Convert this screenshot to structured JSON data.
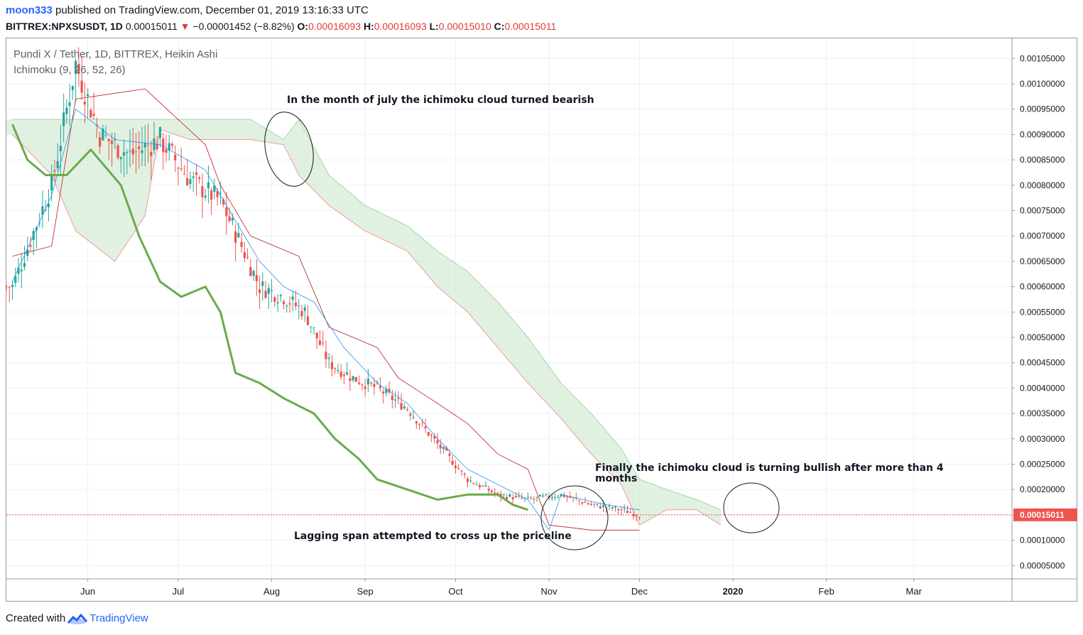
{
  "header": {
    "user": "moon333",
    "published": "published on TradingView.com, December 01, 2019 13:16:33 UTC",
    "symbol": "BITTREX:NPXSUSDT, 1D",
    "last": "0.00015011",
    "change": "−0.00001452 (−8.82%)",
    "o_label": "O:",
    "o": "0.00016093",
    "h_label": "H:",
    "h": "0.00016093",
    "l_label": "L:",
    "l": "0.00015010",
    "c_label": "C:",
    "c": "0.00015011"
  },
  "legend": {
    "line1": "Pundi X / Tether, 1D, BITTREX, Heikin Ashi",
    "line2": "Ichimoku (9, 26, 52, 26)"
  },
  "annotations": {
    "cloud_bearish": "In the month of july the ichimoku cloud turned bearish",
    "cloud_bullish_1": "Finally the ichimoku cloud is turning bullish after more than 4",
    "cloud_bullish_2": "months",
    "lagging": "Lagging span attempted to cross up the priceline"
  },
  "footer": {
    "created": "Created with",
    "brand": "TradingView"
  },
  "colors": {
    "up": "#26a69a",
    "down": "#ef5350",
    "tenkan": "#2196f3",
    "kijun": "#b71c1c",
    "lagging": "#6aaa4c",
    "cloud_bear": "#ffcdd2",
    "cloud_bull": "#c8e6c9"
  },
  "chart_data": {
    "type": "candlestick",
    "scale": "linear",
    "ylim": [
      3e-05,
      0.00109
    ],
    "y_ticks": [
      "0.00005000",
      "0.00010000",
      "0.00015000",
      "0.00020000",
      "0.00025000",
      "0.00030000",
      "0.00035000",
      "0.00040000",
      "0.00045000",
      "0.00050000",
      "0.00055000",
      "0.00060000",
      "0.00065000",
      "0.00070000",
      "0.00075000",
      "0.00080000",
      "0.00085000",
      "0.00090000",
      "0.00095000",
      "0.00100000",
      "0.00105000"
    ],
    "x_ticks": [
      "Jun",
      "Jul",
      "Aug",
      "Sep",
      "Oct",
      "Nov",
      "Dec",
      "2020",
      "Feb",
      "Mar"
    ],
    "last_price": "0.00015011",
    "series": {
      "price_close": {
        "points": [
          [
            "May-07",
            0.0006
          ],
          [
            "May-20",
            0.0008
          ],
          [
            "May-28",
            0.00104
          ],
          [
            "Jun-05",
            0.0009
          ],
          [
            "Jun-15",
            0.00086
          ],
          [
            "Jun-25",
            0.00089
          ],
          [
            "Jul-05",
            0.00081
          ],
          [
            "Jul-15",
            0.00077
          ],
          [
            "Jul-22",
            0.00068
          ],
          [
            "Jul-28",
            0.0006
          ],
          [
            "Aug-05",
            0.00058
          ],
          [
            "Aug-12",
            0.00055
          ],
          [
            "Aug-20",
            0.00045
          ],
          [
            "Aug-28",
            0.00042
          ],
          [
            "Sep-05",
            0.0004
          ],
          [
            "Sep-15",
            0.00036
          ],
          [
            "Sep-25",
            0.00029
          ],
          [
            "Oct-05",
            0.00022
          ],
          [
            "Oct-15",
            0.00019
          ],
          [
            "Oct-25",
            0.00018
          ],
          [
            "Nov-05",
            0.00019
          ],
          [
            "Nov-15",
            0.00017
          ],
          [
            "Nov-25",
            0.00016
          ],
          [
            "Dec-01",
            0.00015
          ]
        ]
      },
      "tenkan": {
        "points": [
          [
            "May-07",
            0.00061
          ],
          [
            "May-20",
            0.00078
          ],
          [
            "May-28",
            0.00095
          ],
          [
            "Jun-10",
            0.00089
          ],
          [
            "Jun-25",
            0.00088
          ],
          [
            "Jul-10",
            0.00083
          ],
          [
            "Jul-18",
            0.00075
          ],
          [
            "Jul-28",
            0.00065
          ],
          [
            "Aug-05",
            0.0006
          ],
          [
            "Aug-15",
            0.00057
          ],
          [
            "Aug-25",
            0.00048
          ],
          [
            "Sep-05",
            0.00041
          ],
          [
            "Sep-15",
            0.00037
          ],
          [
            "Sep-25",
            0.0003
          ],
          [
            "Oct-05",
            0.00024
          ],
          [
            "Oct-15",
            0.00021
          ],
          [
            "Oct-25",
            0.00018
          ],
          [
            "Nov-01",
            0.00012
          ],
          [
            "Nov-05",
            0.00019
          ],
          [
            "Nov-20",
            0.00017
          ],
          [
            "Dec-01",
            0.00016
          ]
        ]
      },
      "kijun": {
        "points": [
          [
            "May-07",
            0.00066
          ],
          [
            "May-20",
            0.00068
          ],
          [
            "May-28",
            0.00097
          ],
          [
            "Jun-20",
            0.00099
          ],
          [
            "Jul-10",
            0.00088
          ],
          [
            "Jul-15",
            0.0008
          ],
          [
            "Jul-25",
            0.0007
          ],
          [
            "Aug-10",
            0.00066
          ],
          [
            "Aug-20",
            0.00052
          ],
          [
            "Sep-05",
            0.00048
          ],
          [
            "Sep-12",
            0.00042
          ],
          [
            "Sep-25",
            0.00037
          ],
          [
            "Oct-05",
            0.00033
          ],
          [
            "Oct-15",
            0.00027
          ],
          [
            "Oct-25",
            0.00024
          ],
          [
            "Nov-01",
            0.00013
          ],
          [
            "Nov-15",
            0.00012
          ],
          [
            "Dec-01",
            0.00012
          ]
        ]
      },
      "lagging_span": {
        "points": [
          [
            "May-07",
            0.00092
          ],
          [
            "May-12",
            0.00085
          ],
          [
            "May-18",
            0.00082
          ],
          [
            "May-25",
            0.00082
          ],
          [
            "Jun-02",
            0.00087
          ],
          [
            "Jun-12",
            0.0008
          ],
          [
            "Jun-18",
            0.0007
          ],
          [
            "Jun-25",
            0.00061
          ],
          [
            "Jul-02",
            0.00058
          ],
          [
            "Jul-10",
            0.0006
          ],
          [
            "Jul-15",
            0.00055
          ],
          [
            "Jul-20",
            0.00043
          ],
          [
            "Jul-28",
            0.00041
          ],
          [
            "Aug-05",
            0.00038
          ],
          [
            "Aug-15",
            0.00035
          ],
          [
            "Aug-22",
            0.0003
          ],
          [
            "Aug-30",
            0.00026
          ],
          [
            "Sep-05",
            0.00022
          ],
          [
            "Sep-15",
            0.0002
          ],
          [
            "Sep-25",
            0.00018
          ],
          [
            "Oct-05",
            0.00019
          ],
          [
            "Oct-15",
            0.00019
          ],
          [
            "Oct-20",
            0.00017
          ],
          [
            "Oct-25",
            0.00016
          ]
        ]
      },
      "senkou_a": {
        "points": [
          [
            "May-07",
            0.00093
          ],
          [
            "May-28",
            0.00093
          ],
          [
            "Jun-05",
            0.00093
          ],
          [
            "Jun-25",
            0.00093
          ],
          [
            "Jul-05",
            0.00093
          ],
          [
            "Jul-15",
            0.00093
          ],
          [
            "Jul-25",
            0.00093
          ],
          [
            "Aug-05",
            0.00089
          ],
          [
            "Aug-10",
            0.00093
          ],
          [
            "Aug-20",
            0.00082
          ],
          [
            "Sep-01",
            0.00076
          ],
          [
            "Sep-15",
            0.00072
          ],
          [
            "Sep-25",
            0.00067
          ],
          [
            "Oct-05",
            0.00063
          ],
          [
            "Oct-15",
            0.00057
          ],
          [
            "Oct-25",
            0.0005
          ],
          [
            "Nov-05",
            0.00041
          ],
          [
            "Nov-15",
            0.00035
          ],
          [
            "Nov-25",
            0.00028
          ],
          [
            "Dec-01",
            0.00022
          ],
          [
            "Dec-10",
            0.0002
          ],
          [
            "Dec-20",
            0.00018
          ],
          [
            "Dec-28",
            0.00016
          ]
        ]
      },
      "senkou_b": {
        "points": [
          [
            "May-07",
            0.0009
          ],
          [
            "May-20",
            0.00082
          ],
          [
            "May-28",
            0.00071
          ],
          [
            "Jun-10",
            0.00065
          ],
          [
            "Jun-20",
            0.00074
          ],
          [
            "Jun-25",
            0.00091
          ],
          [
            "Jul-05",
            0.00089
          ],
          [
            "Jul-15",
            0.00089
          ],
          [
            "Jul-25",
            0.00089
          ],
          [
            "Aug-05",
            0.00088
          ],
          [
            "Aug-10",
            0.00082
          ],
          [
            "Aug-20",
            0.00076
          ],
          [
            "Sep-01",
            0.00071
          ],
          [
            "Sep-15",
            0.00067
          ],
          [
            "Sep-25",
            0.0006
          ],
          [
            "Oct-05",
            0.00055
          ],
          [
            "Oct-15",
            0.00048
          ],
          [
            "Oct-25",
            0.00041
          ],
          [
            "Nov-05",
            0.00034
          ],
          [
            "Nov-15",
            0.00027
          ],
          [
            "Nov-25",
            0.00021
          ],
          [
            "Dec-01",
            0.00013
          ],
          [
            "Dec-10",
            0.00016
          ],
          [
            "Dec-20",
            0.00016
          ],
          [
            "Dec-28",
            0.00013
          ]
        ]
      }
    }
  }
}
